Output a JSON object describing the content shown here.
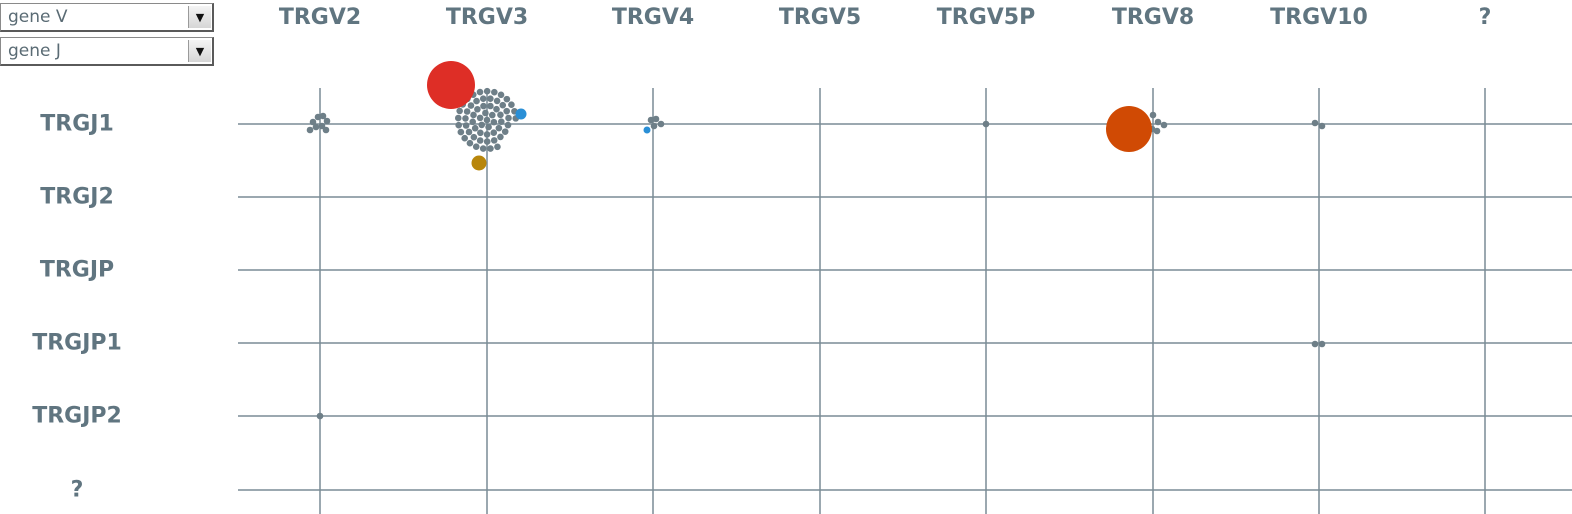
{
  "controls": {
    "axis_v_select": {
      "value": "gene V"
    },
    "axis_j_select": {
      "value": "gene J"
    }
  },
  "columns": [
    "TRGV2",
    "TRGV3",
    "TRGV4",
    "TRGV5",
    "TRGV5P",
    "TRGV8",
    "TRGV10",
    "?"
  ],
  "rows": [
    "TRGJ1",
    "TRGJ2",
    "TRGJP",
    "TRGJP1",
    "TRGJP2",
    "?"
  ],
  "colors": {
    "grid": "#7a8c95",
    "label": "#607580",
    "clone_default": "#6e7f88",
    "clone_red": "#de2e26",
    "clone_orange": "#d04a04",
    "clone_gold": "#b8860b",
    "clone_blue": "#2a8fd6"
  },
  "chart_data": {
    "type": "scatter",
    "x_categories": [
      "TRGV2",
      "TRGV3",
      "TRGV4",
      "TRGV5",
      "TRGV5P",
      "TRGV8",
      "TRGV10",
      "?"
    ],
    "y_categories": [
      "TRGJ1",
      "TRGJ2",
      "TRGJP",
      "TRGJP1",
      "TRGJP2",
      "?"
    ],
    "cells": [
      {
        "v": "TRGV2",
        "j": "TRGJ1",
        "small_clones": 8
      },
      {
        "v": "TRGV3",
        "j": "TRGJ1",
        "small_clones": 60,
        "large_clones": [
          {
            "color": "clone_red",
            "relative_size": 1.0
          },
          {
            "color": "clone_blue",
            "relative_size": 0.22
          },
          {
            "color": "clone_gold",
            "relative_size": 0.3
          }
        ]
      },
      {
        "v": "TRGV4",
        "j": "TRGJ1",
        "small_clones": 4,
        "large_clones": [
          {
            "color": "clone_blue",
            "relative_size": 0.14
          }
        ]
      },
      {
        "v": "TRGV5P",
        "j": "TRGJ1",
        "small_clones": 1
      },
      {
        "v": "TRGV8",
        "j": "TRGJ1",
        "small_clones": 5,
        "large_clones": [
          {
            "color": "clone_orange",
            "relative_size": 0.96
          }
        ]
      },
      {
        "v": "TRGV10",
        "j": "TRGJ1",
        "small_clones": 2
      },
      {
        "v": "TRGV10",
        "j": "TRGJP1",
        "small_clones": 2
      },
      {
        "v": "TRGV2",
        "j": "TRGJP2",
        "small_clones": 1
      }
    ]
  }
}
